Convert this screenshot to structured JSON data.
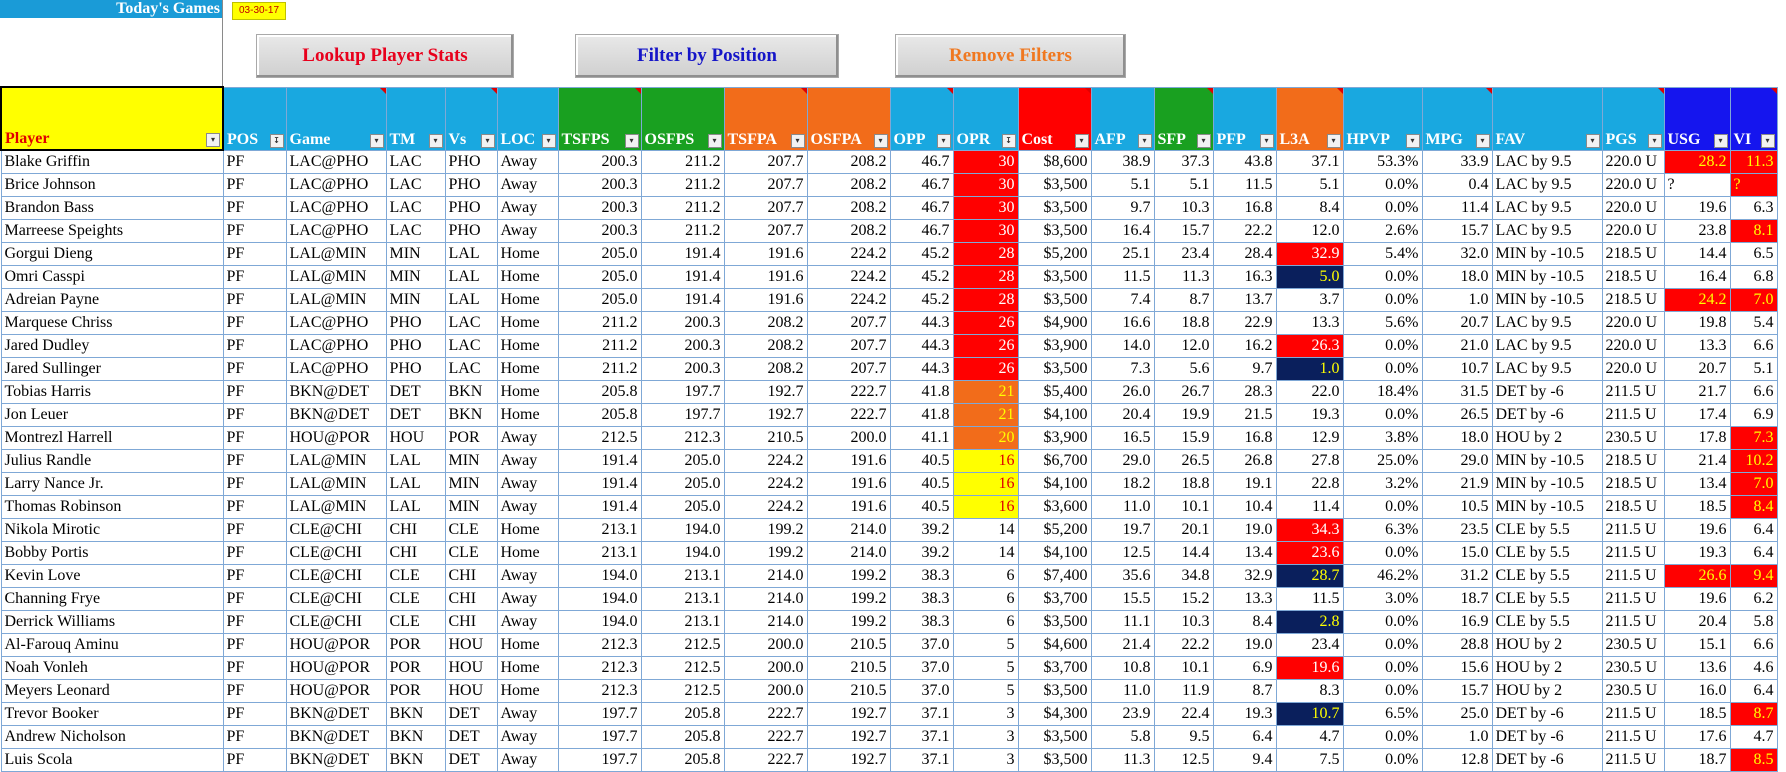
{
  "header": {
    "title": "Today's Games",
    "date": "03-30-17"
  },
  "buttons": {
    "lookup": "Lookup Player Stats",
    "filter": "Filter by Position",
    "remove": "Remove Filters"
  },
  "colors": {
    "header_cyan": "#19a8e0",
    "header_green": "#19a020",
    "header_orange": "#f26c1a",
    "header_red": "#ff0000",
    "header_blue": "#1515ee",
    "highlight_red": "#ff0000",
    "highlight_orange": "#f26c1a",
    "highlight_yellow": "#ffff00",
    "highlight_navy": "#0a1f5c"
  },
  "columns": [
    {
      "label": "Player",
      "color": "yellow"
    },
    {
      "label": "POS",
      "color": "cyan"
    },
    {
      "label": "Game",
      "color": "cyan"
    },
    {
      "label": "TM",
      "color": "cyan"
    },
    {
      "label": "Vs",
      "color": "cyan"
    },
    {
      "label": "LOC",
      "color": "cyan"
    },
    {
      "label": "TSFPS",
      "color": "green"
    },
    {
      "label": "OSFPS",
      "color": "green"
    },
    {
      "label": "TSFPA",
      "color": "orange"
    },
    {
      "label": "OSFPA",
      "color": "orange"
    },
    {
      "label": "OPP",
      "color": "cyan"
    },
    {
      "label": "OPR",
      "color": "cyan"
    },
    {
      "label": "Cost",
      "color": "red"
    },
    {
      "label": "AFP",
      "color": "cyan"
    },
    {
      "label": "SFP",
      "color": "green"
    },
    {
      "label": "PFP",
      "color": "cyan"
    },
    {
      "label": "L3A",
      "color": "orange"
    },
    {
      "label": "HPVP",
      "color": "cyan"
    },
    {
      "label": "MPG",
      "color": "cyan"
    },
    {
      "label": "FAV",
      "color": "cyan"
    },
    {
      "label": "PGS",
      "color": "cyan"
    },
    {
      "label": "USG",
      "color": "blue"
    },
    {
      "label": "VI",
      "color": "blue"
    }
  ],
  "rows": [
    {
      "cells": [
        "Blake Griffin",
        "PF",
        "LAC@PHO",
        "LAC",
        "PHO",
        "Away",
        "200.3",
        "211.2",
        "207.7",
        "208.2",
        "46.7",
        "30",
        "$8,600",
        "38.9",
        "37.3",
        "43.8",
        "37.1",
        "53.3%",
        "33.9",
        "LAC by 9.5",
        "220.0 U",
        "28.2",
        "11.3"
      ],
      "opr": "red",
      "l3a": "",
      "usg": "red",
      "vi": "red"
    },
    {
      "cells": [
        "Brice Johnson",
        "PF",
        "LAC@PHO",
        "LAC",
        "PHO",
        "Away",
        "200.3",
        "211.2",
        "207.7",
        "208.2",
        "46.7",
        "30",
        "$3,500",
        "5.1",
        "5.1",
        "11.5",
        "5.1",
        "0.0%",
        "0.4",
        "LAC by 9.5",
        "220.0 U",
        "?",
        "?"
      ],
      "opr": "red",
      "l3a": "",
      "usg": "",
      "vi": "red"
    },
    {
      "cells": [
        "Brandon Bass",
        "PF",
        "LAC@PHO",
        "LAC",
        "PHO",
        "Away",
        "200.3",
        "211.2",
        "207.7",
        "208.2",
        "46.7",
        "30",
        "$3,500",
        "9.7",
        "10.3",
        "16.8",
        "8.4",
        "0.0%",
        "11.4",
        "LAC by 9.5",
        "220.0 U",
        "19.6",
        "6.3"
      ],
      "opr": "red",
      "l3a": "",
      "usg": "",
      "vi": ""
    },
    {
      "cells": [
        "Marreese Speights",
        "PF",
        "LAC@PHO",
        "LAC",
        "PHO",
        "Away",
        "200.3",
        "211.2",
        "207.7",
        "208.2",
        "46.7",
        "30",
        "$3,500",
        "16.4",
        "15.7",
        "22.2",
        "12.0",
        "2.6%",
        "15.7",
        "LAC by 9.5",
        "220.0 U",
        "23.8",
        "8.1"
      ],
      "opr": "red",
      "l3a": "",
      "usg": "",
      "vi": "red"
    },
    {
      "cells": [
        "Gorgui Dieng",
        "PF",
        "LAL@MIN",
        "MIN",
        "LAL",
        "Home",
        "205.0",
        "191.4",
        "191.6",
        "224.2",
        "45.2",
        "28",
        "$5,200",
        "25.1",
        "23.4",
        "28.4",
        "32.9",
        "5.4%",
        "32.0",
        "MIN by -10.5",
        "218.5 U",
        "14.4",
        "6.5"
      ],
      "opr": "red",
      "l3a": "red",
      "usg": "",
      "vi": ""
    },
    {
      "cells": [
        "Omri Casspi",
        "PF",
        "LAL@MIN",
        "MIN",
        "LAL",
        "Home",
        "205.0",
        "191.4",
        "191.6",
        "224.2",
        "45.2",
        "28",
        "$3,500",
        "11.5",
        "11.3",
        "16.3",
        "5.0",
        "0.0%",
        "18.0",
        "MIN by -10.5",
        "218.5 U",
        "16.4",
        "6.8"
      ],
      "opr": "red",
      "l3a": "navy",
      "usg": "",
      "vi": ""
    },
    {
      "cells": [
        "Adreian Payne",
        "PF",
        "LAL@MIN",
        "MIN",
        "LAL",
        "Home",
        "205.0",
        "191.4",
        "191.6",
        "224.2",
        "45.2",
        "28",
        "$3,500",
        "7.4",
        "8.7",
        "13.7",
        "3.7",
        "0.0%",
        "1.0",
        "MIN by -10.5",
        "218.5 U",
        "24.2",
        "7.0"
      ],
      "opr": "red",
      "l3a": "",
      "usg": "red",
      "vi": "red"
    },
    {
      "cells": [
        "Marquese Chriss",
        "PF",
        "LAC@PHO",
        "PHO",
        "LAC",
        "Home",
        "211.2",
        "200.3",
        "208.2",
        "207.7",
        "44.3",
        "26",
        "$4,900",
        "16.6",
        "18.8",
        "22.9",
        "13.3",
        "5.6%",
        "20.7",
        "LAC by 9.5",
        "220.0 U",
        "19.8",
        "5.4"
      ],
      "opr": "red",
      "l3a": "",
      "usg": "",
      "vi": ""
    },
    {
      "cells": [
        "Jared Dudley",
        "PF",
        "LAC@PHO",
        "PHO",
        "LAC",
        "Home",
        "211.2",
        "200.3",
        "208.2",
        "207.7",
        "44.3",
        "26",
        "$3,900",
        "14.0",
        "12.0",
        "16.2",
        "26.3",
        "0.0%",
        "21.0",
        "LAC by 9.5",
        "220.0 U",
        "13.3",
        "6.6"
      ],
      "opr": "red",
      "l3a": "red",
      "usg": "",
      "vi": ""
    },
    {
      "cells": [
        "Jared Sullinger",
        "PF",
        "LAC@PHO",
        "PHO",
        "LAC",
        "Home",
        "211.2",
        "200.3",
        "208.2",
        "207.7",
        "44.3",
        "26",
        "$3,500",
        "7.3",
        "5.6",
        "9.7",
        "1.0",
        "0.0%",
        "10.7",
        "LAC by 9.5",
        "220.0 U",
        "20.7",
        "5.1"
      ],
      "opr": "red",
      "l3a": "navy",
      "usg": "",
      "vi": ""
    },
    {
      "cells": [
        "Tobias Harris",
        "PF",
        "BKN@DET",
        "DET",
        "BKN",
        "Home",
        "205.8",
        "197.7",
        "192.7",
        "222.7",
        "41.8",
        "21",
        "$5,400",
        "26.0",
        "26.7",
        "28.3",
        "22.0",
        "18.4%",
        "31.5",
        "DET by -6",
        "211.5 U",
        "21.7",
        "6.6"
      ],
      "opr": "orange",
      "l3a": "",
      "usg": "",
      "vi": ""
    },
    {
      "cells": [
        "Jon Leuer",
        "PF",
        "BKN@DET",
        "DET",
        "BKN",
        "Home",
        "205.8",
        "197.7",
        "192.7",
        "222.7",
        "41.8",
        "21",
        "$4,100",
        "20.4",
        "19.9",
        "21.5",
        "19.3",
        "0.0%",
        "26.5",
        "DET by -6",
        "211.5 U",
        "17.4",
        "6.9"
      ],
      "opr": "orange",
      "l3a": "",
      "usg": "",
      "vi": ""
    },
    {
      "cells": [
        "Montrezl Harrell",
        "PF",
        "HOU@POR",
        "HOU",
        "POR",
        "Away",
        "212.5",
        "212.3",
        "210.5",
        "200.0",
        "41.1",
        "20",
        "$3,900",
        "16.5",
        "15.9",
        "16.8",
        "12.9",
        "3.8%",
        "18.0",
        "HOU by 2",
        "230.5 U",
        "17.8",
        "7.3"
      ],
      "opr": "orange",
      "l3a": "",
      "usg": "",
      "vi": "red"
    },
    {
      "cells": [
        "Julius Randle",
        "PF",
        "LAL@MIN",
        "LAL",
        "MIN",
        "Away",
        "191.4",
        "205.0",
        "224.2",
        "191.6",
        "40.5",
        "16",
        "$6,700",
        "29.0",
        "26.5",
        "26.8",
        "27.8",
        "25.0%",
        "29.0",
        "MIN by -10.5",
        "218.5 U",
        "21.4",
        "10.2"
      ],
      "opr": "yellow",
      "l3a": "",
      "usg": "",
      "vi": "red"
    },
    {
      "cells": [
        "Larry Nance Jr.",
        "PF",
        "LAL@MIN",
        "LAL",
        "MIN",
        "Away",
        "191.4",
        "205.0",
        "224.2",
        "191.6",
        "40.5",
        "16",
        "$4,100",
        "18.2",
        "18.8",
        "19.1",
        "22.8",
        "3.2%",
        "21.9",
        "MIN by -10.5",
        "218.5 U",
        "13.4",
        "7.0"
      ],
      "opr": "yellow",
      "l3a": "",
      "usg": "",
      "vi": "red"
    },
    {
      "cells": [
        "Thomas Robinson",
        "PF",
        "LAL@MIN",
        "LAL",
        "MIN",
        "Away",
        "191.4",
        "205.0",
        "224.2",
        "191.6",
        "40.5",
        "16",
        "$3,600",
        "11.0",
        "10.1",
        "10.4",
        "11.4",
        "0.0%",
        "10.5",
        "MIN by -10.5",
        "218.5 U",
        "18.5",
        "8.4"
      ],
      "opr": "yellow",
      "l3a": "",
      "usg": "",
      "vi": "red"
    },
    {
      "cells": [
        "Nikola Mirotic",
        "PF",
        "CLE@CHI",
        "CHI",
        "CLE",
        "Home",
        "213.1",
        "194.0",
        "199.2",
        "214.0",
        "39.2",
        "14",
        "$5,200",
        "19.7",
        "20.1",
        "19.0",
        "34.3",
        "6.3%",
        "23.5",
        "CLE by 5.5",
        "211.5 U",
        "19.6",
        "6.4"
      ],
      "opr": "",
      "l3a": "red",
      "usg": "",
      "vi": ""
    },
    {
      "cells": [
        "Bobby Portis",
        "PF",
        "CLE@CHI",
        "CHI",
        "CLE",
        "Home",
        "213.1",
        "194.0",
        "199.2",
        "214.0",
        "39.2",
        "14",
        "$4,100",
        "12.5",
        "14.4",
        "13.4",
        "23.6",
        "0.0%",
        "15.0",
        "CLE by 5.5",
        "211.5 U",
        "19.3",
        "6.4"
      ],
      "opr": "",
      "l3a": "red",
      "usg": "",
      "vi": ""
    },
    {
      "cells": [
        "Kevin Love",
        "PF",
        "CLE@CHI",
        "CLE",
        "CHI",
        "Away",
        "194.0",
        "213.1",
        "214.0",
        "199.2",
        "38.3",
        "6",
        "$7,400",
        "35.6",
        "34.8",
        "32.9",
        "28.7",
        "46.2%",
        "31.2",
        "CLE by 5.5",
        "211.5 U",
        "26.6",
        "9.4"
      ],
      "opr": "",
      "l3a": "navy",
      "usg": "red",
      "vi": "red"
    },
    {
      "cells": [
        "Channing Frye",
        "PF",
        "CLE@CHI",
        "CLE",
        "CHI",
        "Away",
        "194.0",
        "213.1",
        "214.0",
        "199.2",
        "38.3",
        "6",
        "$3,700",
        "15.5",
        "15.2",
        "13.3",
        "11.5",
        "3.0%",
        "18.7",
        "CLE by 5.5",
        "211.5 U",
        "19.6",
        "6.2"
      ],
      "opr": "",
      "l3a": "",
      "usg": "",
      "vi": ""
    },
    {
      "cells": [
        "Derrick Williams",
        "PF",
        "CLE@CHI",
        "CLE",
        "CHI",
        "Away",
        "194.0",
        "213.1",
        "214.0",
        "199.2",
        "38.3",
        "6",
        "$3,500",
        "11.1",
        "10.3",
        "8.4",
        "2.8",
        "0.0%",
        "16.9",
        "CLE by 5.5",
        "211.5 U",
        "20.4",
        "5.8"
      ],
      "opr": "",
      "l3a": "navy",
      "usg": "",
      "vi": ""
    },
    {
      "cells": [
        "Al-Farouq Aminu",
        "PF",
        "HOU@POR",
        "POR",
        "HOU",
        "Home",
        "212.3",
        "212.5",
        "200.0",
        "210.5",
        "37.0",
        "5",
        "$4,600",
        "21.4",
        "22.2",
        "19.0",
        "23.4",
        "0.0%",
        "28.8",
        "HOU by 2",
        "230.5 U",
        "15.1",
        "6.6"
      ],
      "opr": "",
      "l3a": "",
      "usg": "",
      "vi": ""
    },
    {
      "cells": [
        "Noah Vonleh",
        "PF",
        "HOU@POR",
        "POR",
        "HOU",
        "Home",
        "212.3",
        "212.5",
        "200.0",
        "210.5",
        "37.0",
        "5",
        "$3,700",
        "10.8",
        "10.1",
        "6.9",
        "19.6",
        "0.0%",
        "15.6",
        "HOU by 2",
        "230.5 U",
        "13.6",
        "4.6"
      ],
      "opr": "",
      "l3a": "red",
      "usg": "",
      "vi": ""
    },
    {
      "cells": [
        "Meyers Leonard",
        "PF",
        "HOU@POR",
        "POR",
        "HOU",
        "Home",
        "212.3",
        "212.5",
        "200.0",
        "210.5",
        "37.0",
        "5",
        "$3,500",
        "11.0",
        "11.9",
        "8.7",
        "8.3",
        "0.0%",
        "15.7",
        "HOU by 2",
        "230.5 U",
        "16.0",
        "6.4"
      ],
      "opr": "",
      "l3a": "",
      "usg": "",
      "vi": ""
    },
    {
      "cells": [
        "Trevor Booker",
        "PF",
        "BKN@DET",
        "BKN",
        "DET",
        "Away",
        "197.7",
        "205.8",
        "222.7",
        "192.7",
        "37.1",
        "3",
        "$4,300",
        "23.9",
        "22.4",
        "19.3",
        "10.7",
        "6.5%",
        "25.0",
        "DET by -6",
        "211.5 U",
        "18.5",
        "8.7"
      ],
      "opr": "",
      "l3a": "navy",
      "usg": "",
      "vi": "red"
    },
    {
      "cells": [
        "Andrew Nicholson",
        "PF",
        "BKN@DET",
        "BKN",
        "DET",
        "Away",
        "197.7",
        "205.8",
        "222.7",
        "192.7",
        "37.1",
        "3",
        "$3,500",
        "5.8",
        "9.5",
        "6.4",
        "4.7",
        "0.0%",
        "1.0",
        "DET by -6",
        "211.5 U",
        "17.6",
        "4.7"
      ],
      "opr": "",
      "l3a": "",
      "usg": "",
      "vi": ""
    },
    {
      "cells": [
        "Luis Scola",
        "PF",
        "BKN@DET",
        "BKN",
        "DET",
        "Away",
        "197.7",
        "205.8",
        "222.7",
        "192.7",
        "37.1",
        "3",
        "$3,500",
        "11.3",
        "12.5",
        "9.4",
        "7.5",
        "0.0%",
        "12.8",
        "DET by -6",
        "211.5 U",
        "18.7",
        "8.5"
      ],
      "opr": "",
      "l3a": "",
      "usg": "",
      "vi": "red"
    }
  ]
}
